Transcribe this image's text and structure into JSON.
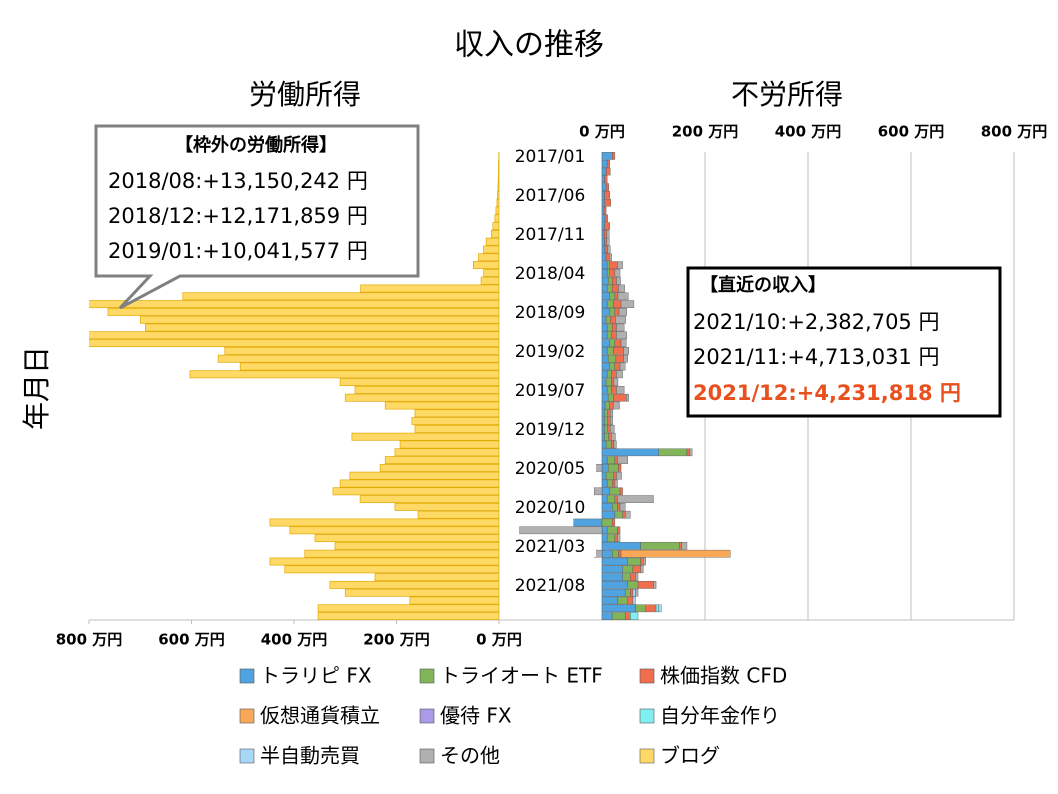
{
  "chart_data": {
    "type": "butterfly",
    "title": "収入の推移",
    "left_title": "労働所得",
    "right_title": "不労所得",
    "ylabel": "年月日",
    "categories": [
      "2017/01",
      null,
      null,
      null,
      null,
      "2017/06",
      null,
      null,
      null,
      null,
      "2017/11",
      null,
      null,
      null,
      null,
      "2018/04",
      null,
      null,
      null,
      null,
      "2018/09",
      null,
      null,
      null,
      null,
      "2019/02",
      null,
      null,
      null,
      null,
      "2019/07",
      null,
      null,
      null,
      null,
      "2019/12",
      null,
      null,
      null,
      null,
      "2020/05",
      null,
      null,
      null,
      null,
      "2020/10",
      null,
      null,
      null,
      null,
      "2021/03",
      null,
      null,
      null,
      null,
      "2021/08",
      null,
      null,
      null,
      null
    ],
    "left_xlim": [
      0,
      800
    ],
    "left_xticks": [
      {
        "value": 0,
        "label": "0 万円"
      },
      {
        "value": 200,
        "label": "200 万円"
      },
      {
        "value": 400,
        "label": "400 万円"
      },
      {
        "value": 600,
        "label": "600 万円"
      },
      {
        "value": 800,
        "label": "800 万円"
      }
    ],
    "xlim": [
      -200,
      800
    ],
    "xticks": [
      {
        "value": 0,
        "label": "0 万円"
      },
      {
        "value": 200,
        "label": "200 万円"
      },
      {
        "value": 400,
        "label": "400 万円"
      },
      {
        "value": 600,
        "label": "600 万円"
      },
      {
        "value": 800,
        "label": "800 万円"
      }
    ],
    "grid": true,
    "left_series": {
      "name": "ブログ",
      "color": "#ffd966",
      "values": [
        0.5,
        1,
        1,
        1.5,
        2,
        3,
        4,
        6,
        8,
        12,
        15,
        25,
        30,
        40,
        50,
        30,
        35,
        270,
        617,
        1315,
        763,
        700,
        690,
        1217,
        1004,
        535,
        548,
        505,
        603,
        310,
        281,
        300,
        222,
        164,
        170,
        164,
        287,
        193,
        203,
        222,
        232,
        291,
        310,
        324,
        271,
        203,
        158,
        447,
        408,
        359,
        320,
        379,
        447,
        418,
        242,
        330,
        300,
        174,
        353,
        353
      ]
    },
    "series": [
      {
        "name": "トラリピ FX",
        "color": "#4ea3e0",
        "values": [
          20,
          10,
          8,
          5,
          8,
          5,
          5,
          4,
          6,
          5,
          4,
          5,
          6,
          8,
          10,
          10,
          12,
          10,
          15,
          10,
          15,
          8,
          10,
          10,
          15,
          10,
          12,
          15,
          10,
          8,
          10,
          12,
          6,
          5,
          5,
          5,
          5,
          8,
          110,
          10,
          12,
          8,
          10,
          15,
          10,
          20,
          25,
          -55,
          10,
          10,
          75,
          20,
          50,
          40,
          40,
          50,
          45,
          30,
          65,
          20
        ]
      },
      {
        "name": "トライオート ETF",
        "color": "#82b55a",
        "values": [
          0,
          0,
          0,
          0,
          0,
          0,
          0,
          0,
          0,
          0,
          0,
          0,
          0,
          0,
          5,
          5,
          8,
          10,
          10,
          12,
          10,
          8,
          10,
          8,
          10,
          12,
          15,
          10,
          8,
          10,
          8,
          10,
          8,
          6,
          6,
          6,
          8,
          10,
          55,
          15,
          20,
          15,
          10,
          20,
          15,
          10,
          15,
          20,
          20,
          15,
          75,
          12,
          25,
          20,
          15,
          20,
          10,
          20,
          20,
          25
        ]
      },
      {
        "name": "株価指数 CFD",
        "color": "#f06e4e",
        "values": [
          5,
          5,
          8,
          5,
          5,
          10,
          12,
          4,
          5,
          10,
          5,
          4,
          5,
          6,
          15,
          10,
          8,
          12,
          6,
          15,
          8,
          10,
          8,
          10,
          12,
          20,
          15,
          10,
          10,
          5,
          10,
          25,
          8,
          5,
          5,
          5,
          5,
          5,
          5,
          5,
          5,
          5,
          5,
          5,
          5,
          5,
          5,
          5,
          5,
          5,
          5,
          5,
          5,
          15,
          10,
          30,
          5,
          10,
          20,
          10
        ]
      },
      {
        "name": "仮想通貨積立",
        "color": "#f9a857",
        "values": [
          0,
          0,
          0,
          0,
          0,
          0,
          0,
          0,
          0,
          0,
          0,
          0,
          0,
          0,
          0,
          0,
          0,
          0,
          0,
          0,
          0,
          0,
          0,
          0,
          0,
          0,
          0,
          0,
          0,
          0,
          0,
          0,
          0,
          0,
          0,
          0,
          0,
          0,
          0,
          0,
          0,
          0,
          0,
          0,
          0,
          0,
          0,
          0,
          0,
          0,
          0,
          212,
          0,
          0,
          0,
          0,
          0,
          0,
          0,
          0
        ]
      },
      {
        "name": "優待 FX",
        "color": "#a99be6",
        "values": [
          0,
          0,
          0,
          0,
          0,
          0,
          0,
          0,
          0,
          0,
          0,
          0,
          0,
          0,
          0,
          0,
          0,
          0,
          0,
          0,
          0,
          0,
          0,
          0,
          0,
          0,
          0,
          0,
          0,
          0,
          0,
          0,
          0,
          0,
          0,
          0,
          0,
          0,
          0,
          0,
          0,
          0,
          0,
          0,
          0,
          0,
          0,
          0,
          0,
          0,
          0,
          0,
          0,
          0,
          0,
          0,
          0,
          0,
          0,
          0
        ]
      },
      {
        "name": "自分年金作り",
        "color": "#7ff0ef",
        "values": [
          0,
          0,
          0,
          0,
          0,
          0,
          0,
          0,
          0,
          0,
          0,
          0,
          0,
          0,
          0,
          0,
          0,
          0,
          0,
          0,
          0,
          0,
          0,
          0,
          0,
          0,
          0,
          0,
          0,
          0,
          0,
          0,
          0,
          0,
          0,
          0,
          0,
          0,
          0,
          0,
          0,
          0,
          0,
          0,
          0,
          0,
          0,
          0,
          0,
          0,
          0,
          0,
          0,
          0,
          0,
          0,
          0,
          0,
          5,
          15
        ]
      },
      {
        "name": "半自動売買",
        "color": "#a8d8f8",
        "values": [
          0,
          0,
          0,
          0,
          0,
          0,
          0,
          0,
          0,
          0,
          0,
          0,
          0,
          0,
          0,
          0,
          0,
          0,
          0,
          0,
          0,
          0,
          0,
          0,
          0,
          0,
          0,
          0,
          0,
          0,
          0,
          0,
          0,
          0,
          0,
          0,
          0,
          0,
          0,
          0,
          0,
          0,
          0,
          0,
          0,
          0,
          0,
          0,
          0,
          0,
          0,
          0,
          0,
          0,
          0,
          0,
          5,
          5,
          5,
          0
        ]
      },
      {
        "name": "その他",
        "color": "#b0b0b0",
        "values": [
          0,
          0,
          0,
          0,
          0,
          0,
          0,
          0,
          0,
          0,
          5,
          5,
          5,
          5,
          10,
          10,
          8,
          12,
          20,
          25,
          15,
          20,
          15,
          20,
          10,
          10,
          8,
          10,
          12,
          8,
          15,
          5,
          12,
          5,
          5,
          8,
          8,
          5,
          5,
          20,
          -45,
          10,
          5,
          -15,
          70,
          10,
          10,
          0,
          -160,
          5,
          10,
          -15,
          5,
          5,
          5,
          5,
          5,
          0,
          0,
          0
        ]
      }
    ],
    "annotations": {
      "outside_labor": {
        "title": "【枠外の労働所得】",
        "lines": [
          "2018/08:+13,150,242 円",
          "2018/12:+12,171,859 円",
          "2019/01:+10,041,577 円"
        ]
      },
      "recent": {
        "title": "【直近の収入】",
        "lines": [
          "2021/10:+2,382,705 円",
          "2021/11:+4,713,031 円",
          "2021/12:+4,231,818 円"
        ]
      }
    }
  }
}
